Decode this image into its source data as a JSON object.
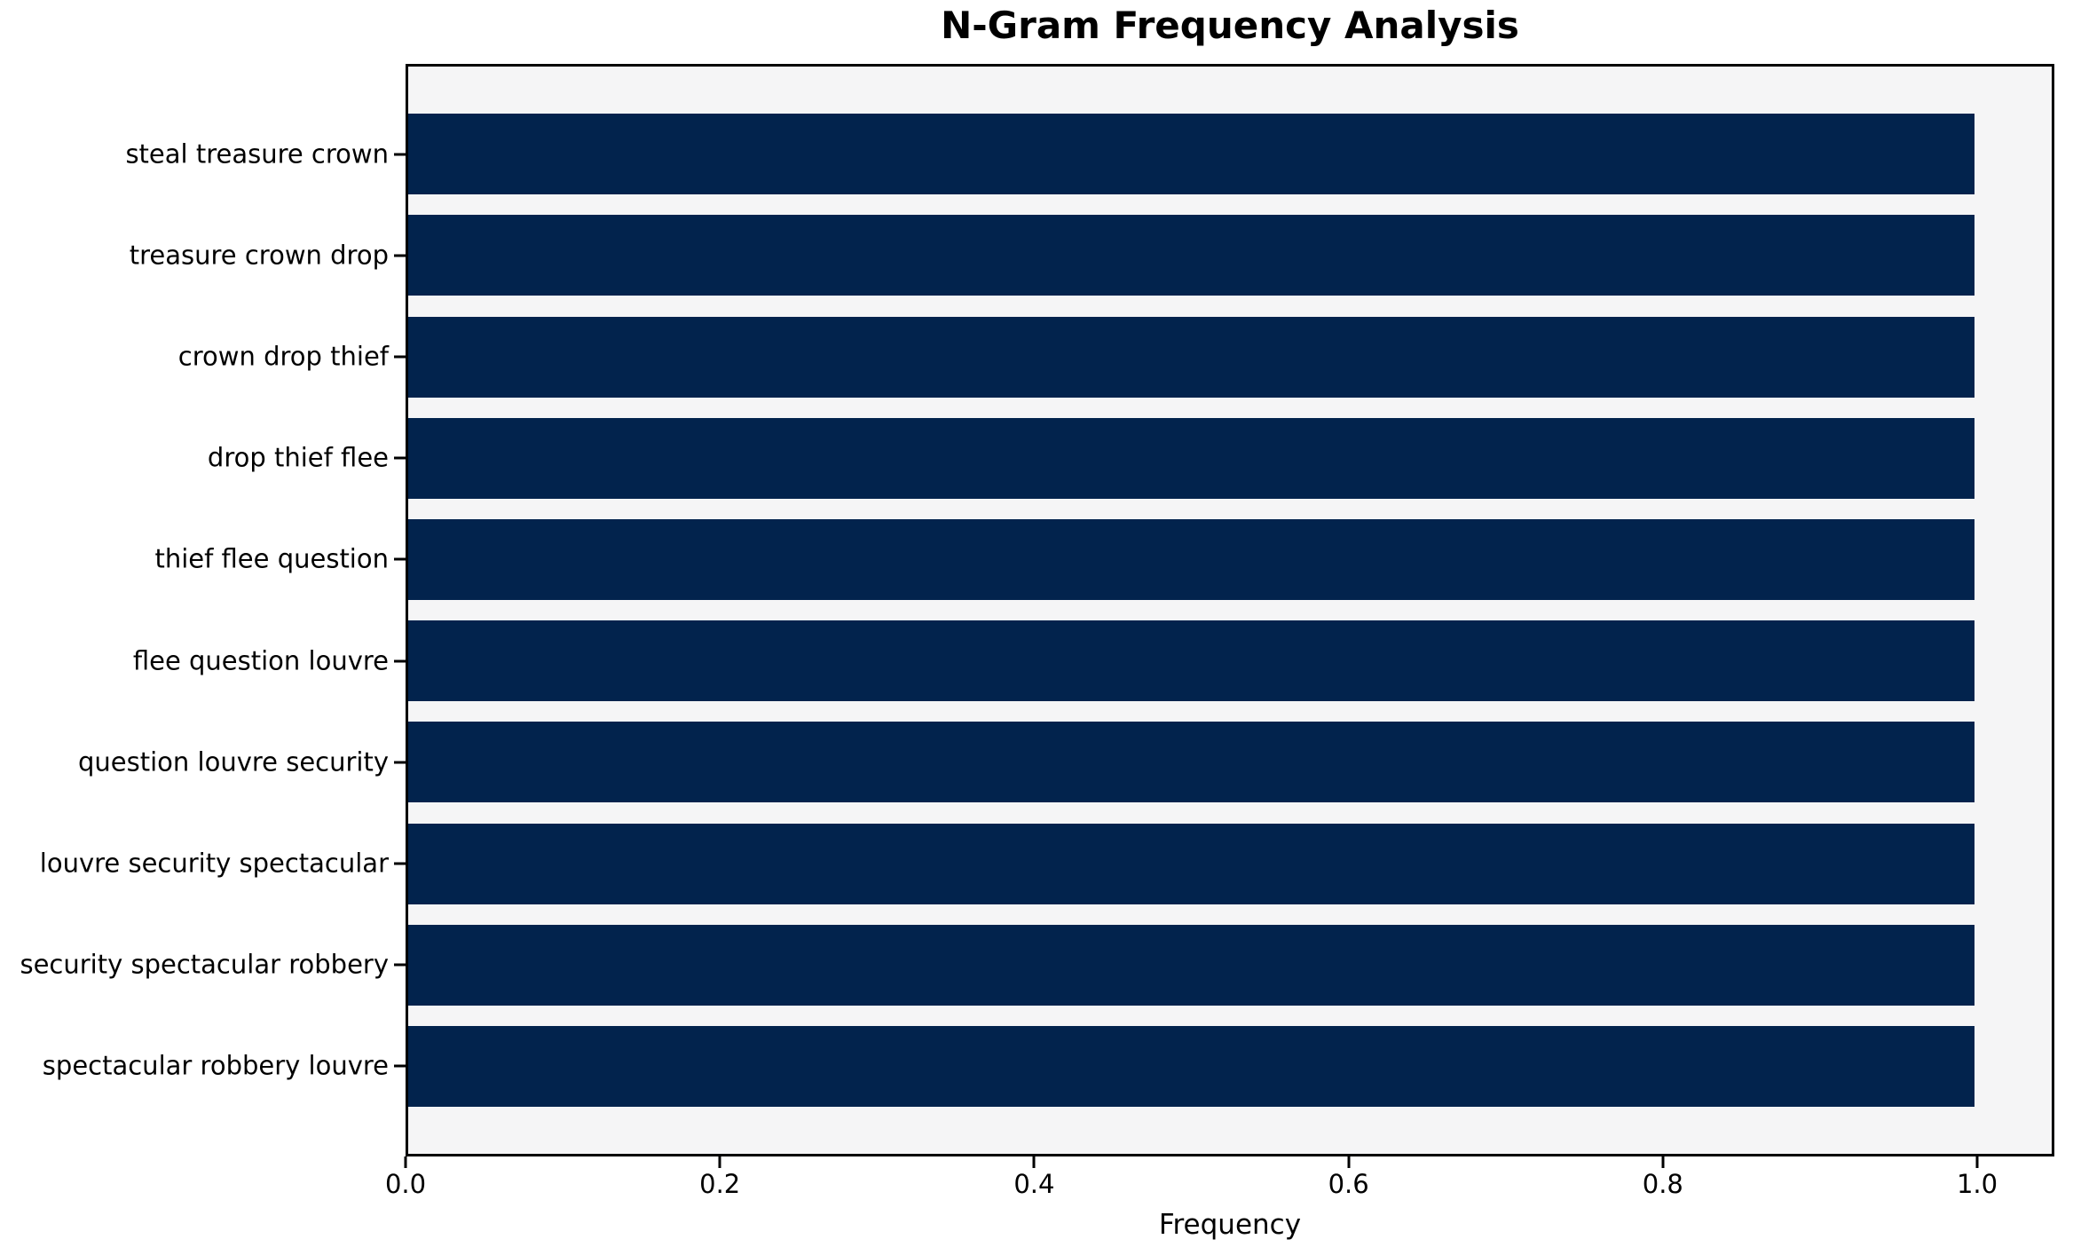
{
  "chart_data": {
    "type": "bar",
    "orientation": "horizontal",
    "title": "N-Gram Frequency Analysis",
    "xlabel": "Frequency",
    "ylabel": "",
    "categories": [
      "steal treasure crown",
      "treasure crown drop",
      "crown drop thief",
      "drop thief flee",
      "thief flee question",
      "flee question louvre",
      "question louvre security",
      "louvre security spectacular",
      "security spectacular robbery",
      "spectacular robbery louvre"
    ],
    "values": [
      1.0,
      1.0,
      1.0,
      1.0,
      1.0,
      1.0,
      1.0,
      1.0,
      1.0,
      1.0
    ],
    "xticks": [
      {
        "value": 0.0,
        "label": "0.0"
      },
      {
        "value": 0.2,
        "label": "0.2"
      },
      {
        "value": 0.4,
        "label": "0.4"
      },
      {
        "value": 0.6,
        "label": "0.6"
      },
      {
        "value": 0.8,
        "label": "0.8"
      },
      {
        "value": 1.0,
        "label": "1.0"
      }
    ],
    "xlim": [
      0,
      1.0491
    ],
    "grid": false,
    "legend_position": "none",
    "colors": {
      "bar": "#02234d",
      "plot_background": "#f5f5f6",
      "figure_background": "#ffffff",
      "spine": "#000000",
      "text": "#000000"
    }
  }
}
